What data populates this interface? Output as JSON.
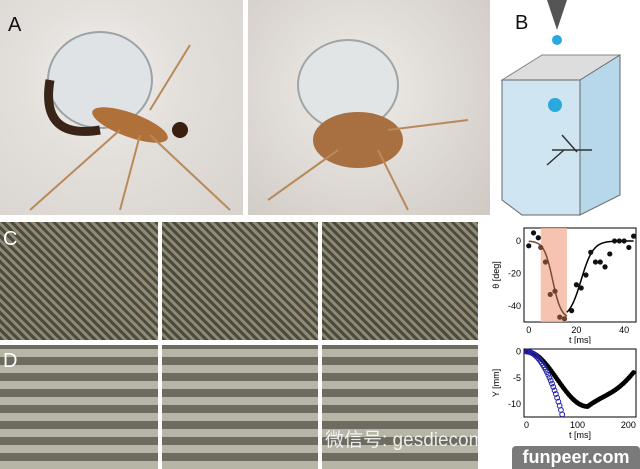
{
  "panels": {
    "a": "A",
    "b": "B",
    "c": "C",
    "d": "D"
  },
  "chart_data": [
    {
      "type": "scatter",
      "panel": "C",
      "xlabel": "t [ms]",
      "ylabel": "θ [deg]",
      "xlim": [
        -2,
        45
      ],
      "ylim": [
        -50,
        8
      ],
      "xticks": [
        0,
        20,
        40
      ],
      "yticks": [
        0,
        -20,
        -40
      ],
      "shaded_interval": [
        5,
        16
      ],
      "shade_color": "#f2b49c",
      "points": [
        [
          0,
          -3
        ],
        [
          2,
          5
        ],
        [
          4,
          2
        ],
        [
          5,
          -4
        ],
        [
          7,
          -13
        ],
        [
          9,
          -33
        ],
        [
          11,
          -31
        ],
        [
          13,
          -47
        ],
        [
          15,
          -48
        ],
        [
          18,
          -43
        ],
        [
          20,
          -27
        ],
        [
          22,
          -29
        ],
        [
          24,
          -21
        ],
        [
          26,
          -7
        ],
        [
          28,
          -13
        ],
        [
          30,
          -13
        ],
        [
          32,
          -16
        ],
        [
          34,
          -8
        ],
        [
          36,
          0
        ],
        [
          38,
          0
        ],
        [
          40,
          0
        ],
        [
          42,
          -4
        ],
        [
          44,
          3
        ]
      ],
      "fit_series": [
        {
          "color": "#7a4a30",
          "range": [
            0,
            16
          ]
        },
        {
          "color": "#000000",
          "range": [
            16,
            44
          ]
        }
      ]
    },
    {
      "type": "scatter",
      "panel": "D",
      "xlabel": "t [ms]",
      "ylabel": "Y [mm]",
      "xlim": [
        -5,
        215
      ],
      "ylim": [
        -12.5,
        0.5
      ],
      "xticks": [
        0,
        100,
        200
      ],
      "yticks": [
        0,
        -5,
        -10
      ],
      "series": [
        {
          "color": "#000000",
          "marker": "filled",
          "min_point": [
            120,
            -10.5
          ],
          "end_point": [
            210,
            -4
          ]
        },
        {
          "color": "#2222aa",
          "marker": "open-circle",
          "end_point": [
            70,
            -12
          ]
        }
      ]
    }
  ],
  "watermark": {
    "wechat": "微信号: gesdiecom",
    "site": "funpeer.com"
  }
}
